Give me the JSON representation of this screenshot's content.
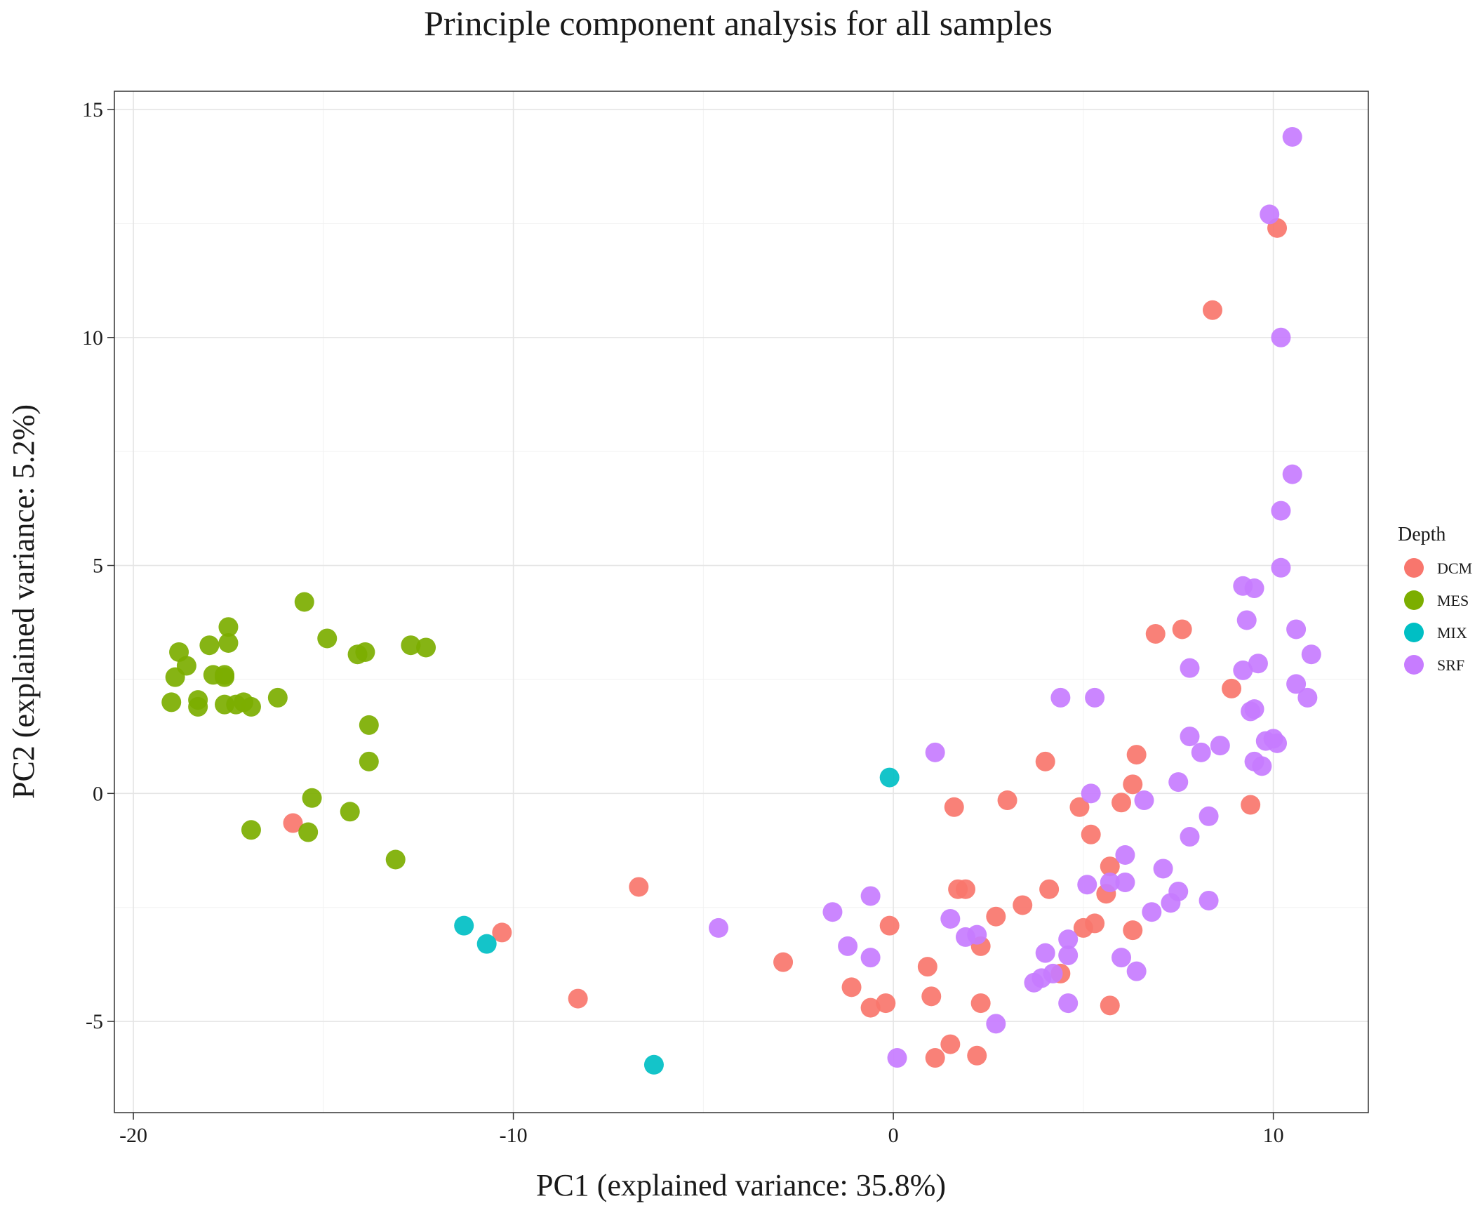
{
  "chart_data": {
    "type": "scatter",
    "title": "Principle component analysis for all samples",
    "xlabel": "PC1 (explained variance: 35.8%)",
    "ylabel": "PC2 (explained variance: 5.2%)",
    "xlim": [
      -20.5,
      12.5
    ],
    "ylim": [
      -7.0,
      15.4
    ],
    "x_ticks": [
      -20,
      -10,
      0,
      10
    ],
    "x_tick_labels": [
      "-20",
      "-10",
      "0",
      "10"
    ],
    "y_ticks": [
      -5,
      0,
      5,
      10,
      15
    ],
    "y_tick_labels": [
      "-5",
      "0",
      "5",
      "10",
      "15"
    ],
    "grid": true,
    "legend": {
      "title": "Depth",
      "placement": "right"
    },
    "series": [
      {
        "name": "DCM",
        "color": "#F8766D",
        "points": [
          [
            10.1,
            12.4
          ],
          [
            8.4,
            10.6
          ],
          [
            6.9,
            3.5
          ],
          [
            7.6,
            3.6
          ],
          [
            8.9,
            2.3
          ],
          [
            4.0,
            0.7
          ],
          [
            6.4,
            0.85
          ],
          [
            3.0,
            -0.15
          ],
          [
            1.6,
            -0.3
          ],
          [
            6.3,
            0.2
          ],
          [
            6.0,
            -0.2
          ],
          [
            4.9,
            -0.3
          ],
          [
            5.2,
            -0.9
          ],
          [
            9.4,
            -0.25
          ],
          [
            5.7,
            -1.6
          ],
          [
            1.7,
            -2.1
          ],
          [
            1.9,
            -2.1
          ],
          [
            4.1,
            -2.1
          ],
          [
            5.6,
            -2.2
          ],
          [
            3.4,
            -2.45
          ],
          [
            2.7,
            -2.7
          ],
          [
            5.0,
            -2.95
          ],
          [
            5.3,
            -2.85
          ],
          [
            6.3,
            -3.0
          ],
          [
            -0.1,
            -2.9
          ],
          [
            2.3,
            -3.35
          ],
          [
            0.9,
            -3.8
          ],
          [
            4.4,
            -3.95
          ],
          [
            1.0,
            -4.45
          ],
          [
            2.3,
            -4.6
          ],
          [
            -0.2,
            -4.6
          ],
          [
            -0.6,
            -4.7
          ],
          [
            5.7,
            -4.65
          ],
          [
            1.5,
            -5.5
          ],
          [
            1.1,
            -5.8
          ],
          [
            2.2,
            -5.75
          ],
          [
            -1.1,
            -4.25
          ],
          [
            -2.9,
            -3.7
          ],
          [
            -6.7,
            -2.05
          ],
          [
            -8.3,
            -4.5
          ],
          [
            -10.3,
            -3.05
          ],
          [
            -15.8,
            -0.65
          ]
        ]
      },
      {
        "name": "MES",
        "color": "#7CAE00",
        "points": [
          [
            -15.5,
            4.2
          ],
          [
            -17.5,
            3.65
          ],
          [
            -18.0,
            3.25
          ],
          [
            -17.5,
            3.3
          ],
          [
            -18.8,
            3.1
          ],
          [
            -18.6,
            2.8
          ],
          [
            -18.9,
            2.55
          ],
          [
            -17.9,
            2.6
          ],
          [
            -17.6,
            2.55
          ],
          [
            -17.6,
            2.6
          ],
          [
            -19.0,
            2.0
          ],
          [
            -18.3,
            2.05
          ],
          [
            -18.3,
            1.9
          ],
          [
            -17.6,
            1.95
          ],
          [
            -17.3,
            1.95
          ],
          [
            -17.1,
            2.0
          ],
          [
            -16.9,
            1.9
          ],
          [
            -16.2,
            2.1
          ],
          [
            -14.9,
            3.4
          ],
          [
            -14.1,
            3.05
          ],
          [
            -13.9,
            3.1
          ],
          [
            -12.7,
            3.25
          ],
          [
            -12.3,
            3.2
          ],
          [
            -13.8,
            1.5
          ],
          [
            -13.8,
            0.7
          ],
          [
            -15.3,
            -0.1
          ],
          [
            -16.9,
            -0.8
          ],
          [
            -15.4,
            -0.85
          ],
          [
            -14.3,
            -0.4
          ],
          [
            -13.1,
            -1.45
          ]
        ]
      },
      {
        "name": "MIX",
        "color": "#00BFC4",
        "points": [
          [
            -0.1,
            0.35
          ],
          [
            -11.3,
            -2.9
          ],
          [
            -10.7,
            -3.3
          ],
          [
            -6.3,
            -5.95
          ]
        ]
      },
      {
        "name": "SRF",
        "color": "#C77CFF",
        "points": [
          [
            10.5,
            14.4
          ],
          [
            9.9,
            12.7
          ],
          [
            10.2,
            10.0
          ],
          [
            10.5,
            7.0
          ],
          [
            10.2,
            6.2
          ],
          [
            10.2,
            4.95
          ],
          [
            9.2,
            4.55
          ],
          [
            9.5,
            4.5
          ],
          [
            9.3,
            3.8
          ],
          [
            10.6,
            3.6
          ],
          [
            11.0,
            3.05
          ],
          [
            9.6,
            2.85
          ],
          [
            9.2,
            2.7
          ],
          [
            7.8,
            2.75
          ],
          [
            10.6,
            2.4
          ],
          [
            10.9,
            2.1
          ],
          [
            9.4,
            1.8
          ],
          [
            9.5,
            1.85
          ],
          [
            9.8,
            1.15
          ],
          [
            10.1,
            1.1
          ],
          [
            10.0,
            1.2
          ],
          [
            9.5,
            0.7
          ],
          [
            9.7,
            0.6
          ],
          [
            7.8,
            1.25
          ],
          [
            8.6,
            1.05
          ],
          [
            8.1,
            0.9
          ],
          [
            7.5,
            0.25
          ],
          [
            8.3,
            -0.5
          ],
          [
            7.8,
            -0.95
          ],
          [
            6.6,
            -0.15
          ],
          [
            5.2,
            0.0
          ],
          [
            4.4,
            2.1
          ],
          [
            5.3,
            2.1
          ],
          [
            1.1,
            0.9
          ],
          [
            6.1,
            -1.35
          ],
          [
            5.7,
            -1.95
          ],
          [
            6.1,
            -1.95
          ],
          [
            7.1,
            -1.65
          ],
          [
            5.1,
            -2.0
          ],
          [
            7.5,
            -2.15
          ],
          [
            8.3,
            -2.35
          ],
          [
            7.3,
            -2.4
          ],
          [
            6.8,
            -2.6
          ],
          [
            -0.6,
            -2.25
          ],
          [
            -1.6,
            -2.6
          ],
          [
            -4.6,
            -2.95
          ],
          [
            1.5,
            -2.75
          ],
          [
            1.9,
            -3.15
          ],
          [
            2.2,
            -3.1
          ],
          [
            -1.2,
            -3.35
          ],
          [
            -0.6,
            -3.6
          ],
          [
            4.6,
            -3.2
          ],
          [
            4.0,
            -3.5
          ],
          [
            4.6,
            -3.55
          ],
          [
            6.0,
            -3.6
          ],
          [
            6.4,
            -3.9
          ],
          [
            4.2,
            -3.95
          ],
          [
            3.9,
            -4.05
          ],
          [
            3.7,
            -4.15
          ],
          [
            4.6,
            -4.6
          ],
          [
            2.7,
            -5.05
          ],
          [
            0.1,
            -5.8
          ]
        ]
      }
    ]
  }
}
